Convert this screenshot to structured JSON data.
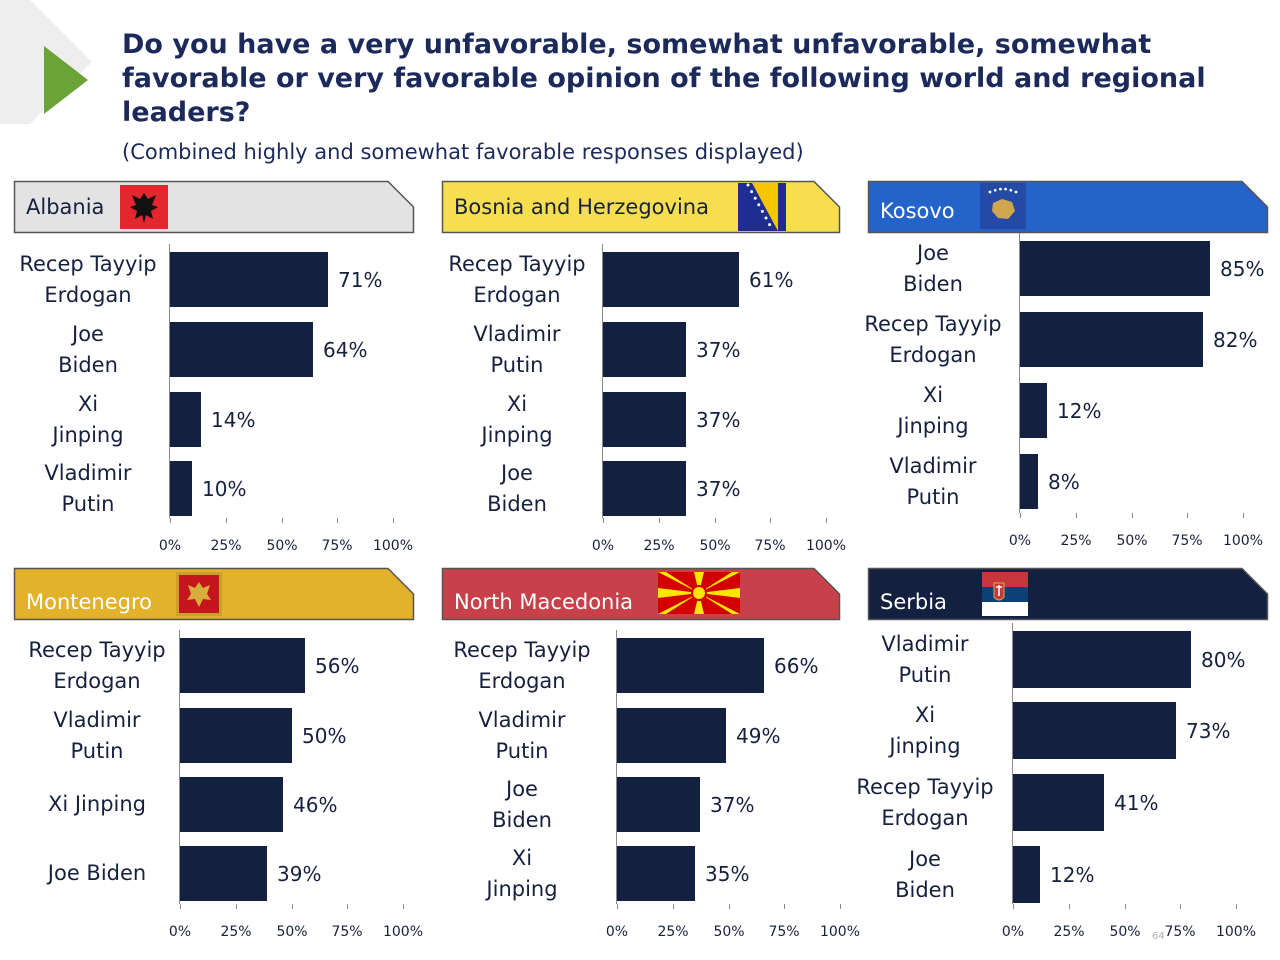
{
  "title": "Do you have a very unfavorable, somewhat unfavorable, somewhat favorable or very favorable opinion of the following world and regional leaders?",
  "subtitle": "(Combined highly and somewhat favorable responses displayed)",
  "page_number": "64",
  "colors": {
    "bar": "#13203f",
    "title": "#1b2a5a",
    "accent_triangle": "#6aa336",
    "albania_header": "#e3e3e3",
    "bosnia_header": "#f7de4e",
    "kosovo_header": "#2463c9",
    "montenegro_header": "#e2b22a",
    "north_macedonia_header": "#c8414a",
    "serbia_header": "#13203f"
  },
  "chart_data": [
    {
      "type": "bar",
      "orientation": "horizontal",
      "title": "Albania",
      "categories": [
        "Recep Tayyip\nErdogan",
        "Joe\nBiden",
        "Xi\nJinping",
        "Vladimir\nPutin"
      ],
      "values": [
        71,
        64,
        14,
        10
      ],
      "value_labels": [
        "71%",
        "64%",
        "14%",
        "10%"
      ],
      "xlim": [
        0,
        100
      ],
      "xticks": [
        "0%",
        "25%",
        "50%",
        "75%",
        "100%"
      ]
    },
    {
      "type": "bar",
      "orientation": "horizontal",
      "title": "Bosnia and Herzegovina",
      "categories": [
        "Recep Tayyip\nErdogan",
        "Vladimir\nPutin",
        "Xi\nJinping",
        "Joe\nBiden"
      ],
      "values": [
        61,
        37,
        37,
        37
      ],
      "value_labels": [
        "61%",
        "37%",
        "37%",
        "37%"
      ],
      "xlim": [
        0,
        100
      ],
      "xticks": [
        "0%",
        "25%",
        "50%",
        "75%",
        "100%"
      ]
    },
    {
      "type": "bar",
      "orientation": "horizontal",
      "title": "Kosovo",
      "categories": [
        "Joe\nBiden",
        "Recep Tayyip\nErdogan",
        "Xi\nJinping",
        "Vladimir\nPutin"
      ],
      "values": [
        85,
        82,
        12,
        8
      ],
      "value_labels": [
        "85%",
        "82%",
        "12%",
        "8%"
      ],
      "xlim": [
        0,
        100
      ],
      "xticks": [
        "0%",
        "25%",
        "50%",
        "75%",
        "100%"
      ]
    },
    {
      "type": "bar",
      "orientation": "horizontal",
      "title": "Montenegro",
      "categories": [
        "Recep Tayyip\nErdogan",
        "Vladimir\nPutin",
        "Xi Jinping",
        "Joe Biden"
      ],
      "values": [
        56,
        50,
        46,
        39
      ],
      "value_labels": [
        "56%",
        "50%",
        "46%",
        "39%"
      ],
      "xlim": [
        0,
        100
      ],
      "xticks": [
        "0%",
        "25%",
        "50%",
        "75%",
        "100%"
      ]
    },
    {
      "type": "bar",
      "orientation": "horizontal",
      "title": "North Macedonia",
      "categories": [
        "Recep Tayyip\nErdogan",
        "Vladimir\nPutin",
        "Joe\nBiden",
        "Xi\nJinping"
      ],
      "values": [
        66,
        49,
        37,
        35
      ],
      "value_labels": [
        "66%",
        "49%",
        "37%",
        "35%"
      ],
      "xlim": [
        0,
        100
      ],
      "xticks": [
        "0%",
        "25%",
        "50%",
        "75%",
        "100%"
      ]
    },
    {
      "type": "bar",
      "orientation": "horizontal",
      "title": "Serbia",
      "categories": [
        "Vladimir\nPutin",
        "Xi\nJinping",
        "Recep Tayyip\nErdogan",
        "Joe\nBiden"
      ],
      "values": [
        80,
        73,
        41,
        12
      ],
      "value_labels": [
        "80%",
        "73%",
        "41%",
        "12%"
      ],
      "xlim": [
        0,
        100
      ],
      "xticks": [
        "0%",
        "25%",
        "50%",
        "75%",
        "100%"
      ]
    }
  ]
}
